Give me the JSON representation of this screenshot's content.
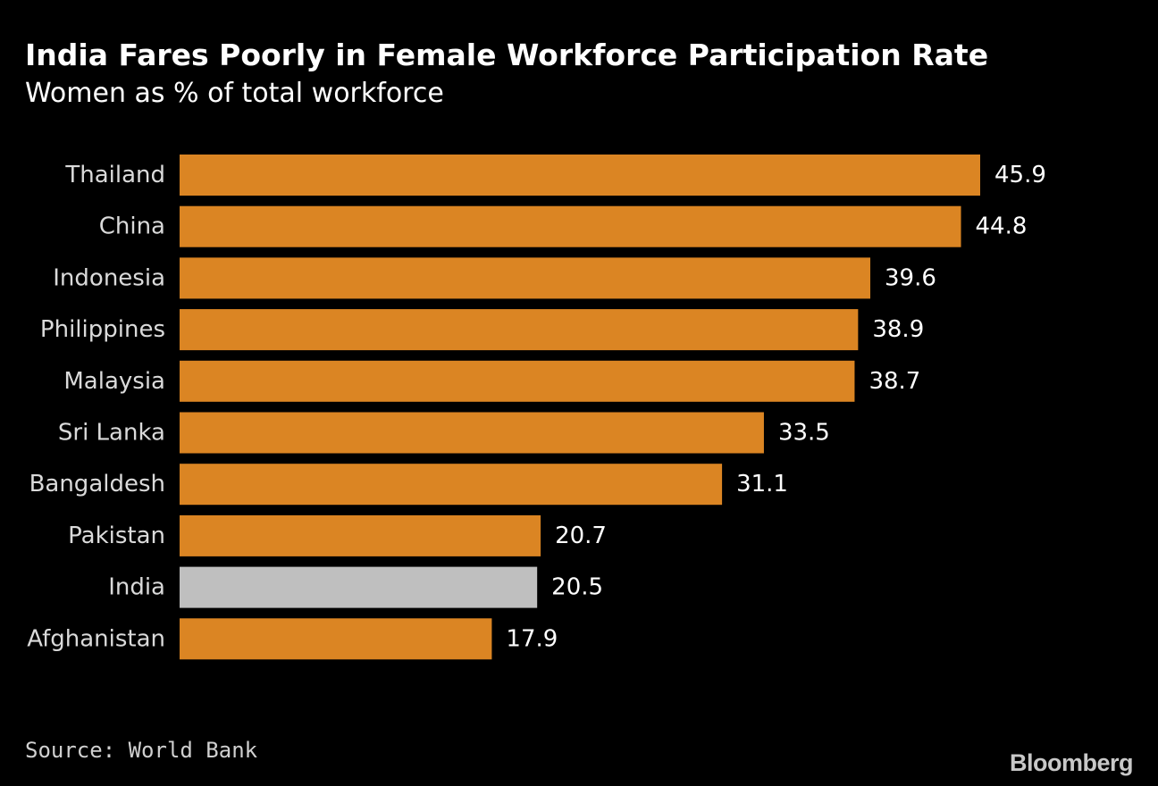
{
  "chart_data": {
    "type": "bar",
    "orientation": "horizontal",
    "title": "India Fares Poorly in Female Workforce Participation Rate",
    "subtitle": "Women as % of total workforce",
    "xlabel": "",
    "ylabel": "",
    "xlim": [
      0,
      45.9
    ],
    "grid": false,
    "categories": [
      "Thailand",
      "China",
      "Indonesia",
      "Philippines",
      "Malaysia",
      "Sri Lanka",
      "Bangaldesh",
      "Pakistan",
      "India",
      "Afghanistan"
    ],
    "values": [
      45.9,
      44.8,
      39.6,
      38.9,
      38.7,
      33.5,
      31.1,
      20.7,
      20.5,
      17.9
    ],
    "value_labels": [
      "45.9",
      "44.8",
      "39.6",
      "38.9",
      "38.7",
      "33.5",
      "31.1",
      "20.7",
      "20.5",
      "17.9"
    ],
    "highlight": "India",
    "colors": {
      "bar": "#db8523",
      "highlight": "#bfbfbf",
      "background": "#000000"
    }
  },
  "footer": {
    "source": "Source: World Bank",
    "logo": "Bloomberg"
  }
}
